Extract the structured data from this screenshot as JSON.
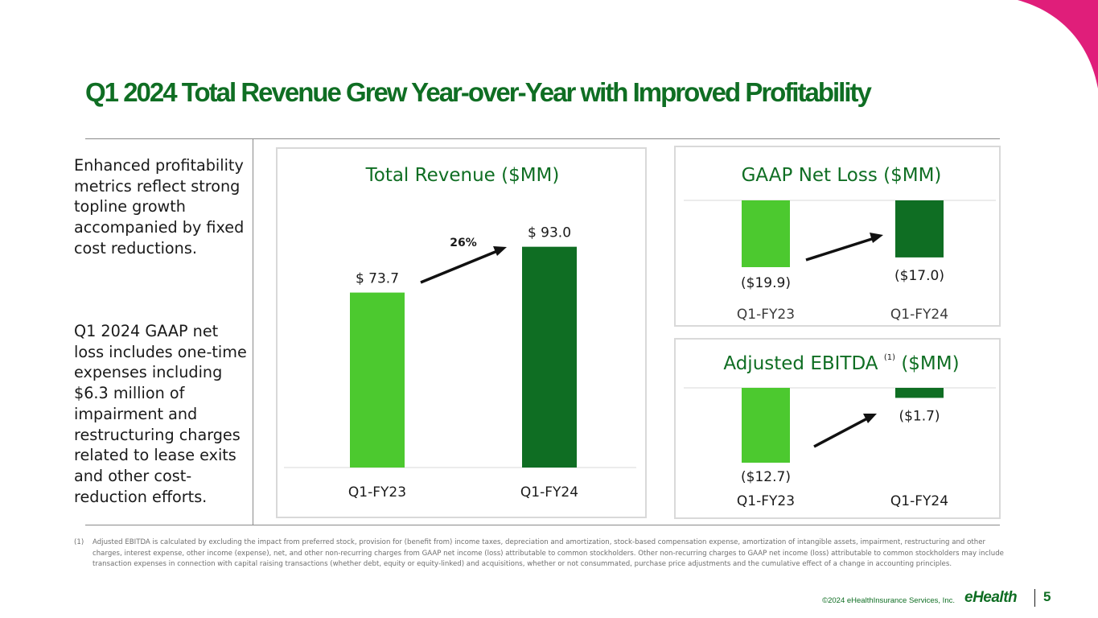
{
  "slide": {
    "title": "Q1 2024 Total Revenue Grew Year-over-Year with Improved Profitability",
    "page_number": "5",
    "copyright": "©2024 eHealthInsurance Services, Inc.",
    "logo_text": "eHealth"
  },
  "sidebar": {
    "paragraphs": [
      "Enhanced profitability metrics reflect strong topline growth accompanied by fixed cost reductions.",
      "Q1 2024 GAAP net loss includes one-time expenses including $6.3 million of impairment and restructuring charges related to lease exits and other cost-reduction efforts."
    ]
  },
  "footnote": {
    "number": "(1)",
    "text": "Adjusted EBITDA is calculated by excluding the impact from preferred stock, provision for (benefit from) income taxes, depreciation and amortization, stock-based compensation expense, amortization of intangible assets, impairment, restructuring and other charges, interest expense, other income (expense), net, and other non-recurring charges from GAAP net income (loss) attributable to common stockholders. Other non-recurring charges to GAAP net income (loss) attributable to common stockholders may include transaction expenses in connection with capital raising transactions (whether debt, equity or equity-linked) and acquisitions, whether or not consummated, purchase price adjustments and the cumulative effect of a change in accounting principles."
  },
  "colors": {
    "prior_year": "#4cc92f",
    "current_year": "#0f6e23",
    "title": "#0f6e23",
    "accent": "#e01e7a"
  },
  "chart_data": [
    {
      "type": "bar",
      "title": "Total Revenue ($MM)",
      "categories": [
        "Q1-FY23",
        "Q1-FY24"
      ],
      "values": [
        73.7,
        93.0
      ],
      "data_labels": [
        "$ 73.7",
        "$ 93.0"
      ],
      "annotation": "26%",
      "ylim": [
        0,
        100
      ]
    },
    {
      "type": "bar",
      "title": "GAAP Net Loss ($MM)",
      "categories": [
        "Q1-FY23",
        "Q1-FY24"
      ],
      "values": [
        -19.9,
        -17.0
      ],
      "data_labels": [
        "($19.9)",
        "($17.0)"
      ],
      "ylim": [
        -25,
        0
      ]
    },
    {
      "type": "bar",
      "title": "Adjusted EBITDA",
      "title_suffix": "($MM)",
      "title_superscript": "(1)",
      "categories": [
        "Q1-FY23",
        "Q1-FY24"
      ],
      "values": [
        -12.7,
        -1.7
      ],
      "data_labels": [
        "($12.7)",
        "($1.7)"
      ],
      "ylim": [
        -14,
        0
      ]
    }
  ]
}
